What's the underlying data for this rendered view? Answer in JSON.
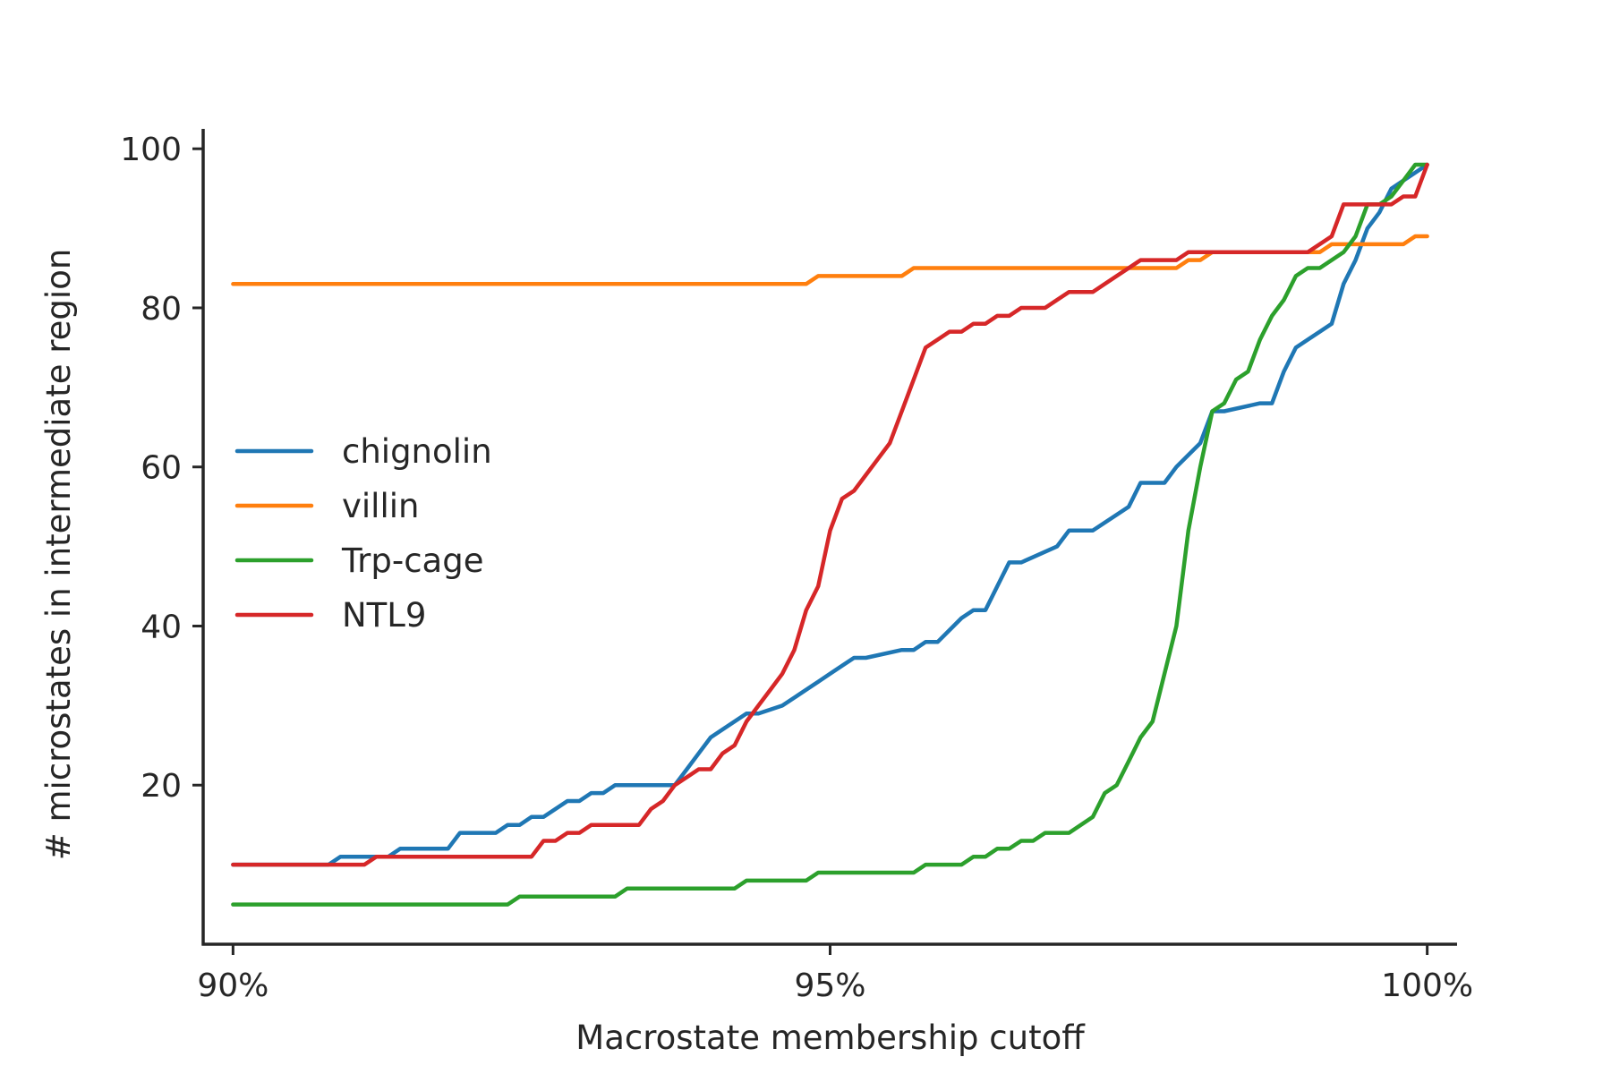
{
  "chart_data": {
    "type": "line",
    "title": "",
    "xlabel": "Macrostate membership cutoff",
    "ylabel": "# microstates in intermediate region",
    "xlim": [
      0.8975,
      1.0025
    ],
    "ylim": [
      0,
      102.5
    ],
    "x_ticks": [
      {
        "value": 0.9,
        "label": "90%"
      },
      {
        "value": 0.95,
        "label": "95%"
      },
      {
        "value": 1.0,
        "label": "100%"
      }
    ],
    "y_ticks": [
      {
        "value": 20,
        "label": "20"
      },
      {
        "value": 40,
        "label": "40"
      },
      {
        "value": 60,
        "label": "60"
      },
      {
        "value": 80,
        "label": "80"
      },
      {
        "value": 100,
        "label": "100"
      }
    ],
    "grid": false,
    "legend_position": "center-left",
    "series": [
      {
        "name": "chignolin",
        "color": "#1f77b4",
        "x": [
          0.9,
          0.908,
          0.909,
          0.913,
          0.914,
          0.918,
          0.919,
          0.922,
          0.923,
          0.924,
          0.925,
          0.926,
          0.928,
          0.929,
          0.93,
          0.931,
          0.932,
          0.933,
          0.934,
          0.937,
          0.938,
          0.939,
          0.94,
          0.941,
          0.943,
          0.944,
          0.946,
          0.947,
          0.948,
          0.949,
          0.95,
          0.951,
          0.952,
          0.953,
          0.956,
          0.957,
          0.958,
          0.959,
          0.961,
          0.962,
          0.963,
          0.964,
          0.965,
          0.966,
          0.969,
          0.97,
          0.971,
          0.972,
          0.974,
          0.975,
          0.976,
          0.978,
          0.979,
          0.981,
          0.982,
          0.983,
          0.986,
          0.987,
          0.988,
          0.989,
          0.99,
          0.991,
          0.992,
          0.993,
          0.994,
          0.995,
          0.996,
          0.997,
          0.998,
          0.999,
          1.0
        ],
        "y": [
          10,
          10,
          11,
          11,
          12,
          12,
          14,
          14,
          15,
          15,
          16,
          16,
          18,
          18,
          19,
          19,
          20,
          20,
          20,
          20,
          22,
          24,
          26,
          27,
          29,
          29,
          30,
          31,
          32,
          33,
          34,
          35,
          36,
          36,
          37,
          37,
          38,
          38,
          41,
          42,
          42,
          45,
          48,
          48,
          50,
          52,
          52,
          52,
          54,
          55,
          58,
          58,
          60,
          63,
          67,
          67,
          68,
          68,
          72,
          75,
          76,
          77,
          78,
          83,
          86,
          90,
          92,
          95,
          96,
          97,
          98
        ]
      },
      {
        "name": "villin",
        "color": "#ff7f0e",
        "x": [
          0.9,
          0.948,
          0.949,
          0.956,
          0.957,
          0.979,
          0.98,
          0.981,
          0.982,
          0.983,
          0.991,
          0.992,
          0.998,
          0.999,
          1.0
        ],
        "y": [
          83,
          83,
          84,
          84,
          85,
          85,
          86,
          86,
          87,
          87,
          87,
          88,
          88,
          89,
          89
        ]
      },
      {
        "name": "Trp-cage",
        "color": "#2ca02c",
        "x": [
          0.9,
          0.923,
          0.924,
          0.932,
          0.933,
          0.942,
          0.943,
          0.948,
          0.949,
          0.957,
          0.958,
          0.961,
          0.962,
          0.963,
          0.964,
          0.965,
          0.966,
          0.967,
          0.968,
          0.969,
          0.97,
          0.972,
          0.973,
          0.974,
          0.975,
          0.976,
          0.977,
          0.978,
          0.979,
          0.98,
          0.981,
          0.982,
          0.983,
          0.984,
          0.985,
          0.986,
          0.987,
          0.988,
          0.989,
          0.99,
          0.991,
          0.992,
          0.993,
          0.994,
          0.995,
          0.996,
          0.997,
          0.998,
          0.999,
          1.0
        ],
        "y": [
          5,
          5,
          6,
          6,
          7,
          7,
          8,
          8,
          9,
          9,
          10,
          10,
          11,
          11,
          12,
          12,
          13,
          13,
          14,
          14,
          14,
          16,
          19,
          20,
          23,
          26,
          28,
          34,
          40,
          52,
          60,
          67,
          68,
          71,
          72,
          76,
          79,
          81,
          84,
          85,
          85,
          86,
          87,
          89,
          93,
          93,
          94,
          96,
          98,
          98
        ]
      },
      {
        "name": "NTL9",
        "color": "#d62728",
        "x": [
          0.9,
          0.908,
          0.911,
          0.912,
          0.913,
          0.925,
          0.926,
          0.927,
          0.928,
          0.929,
          0.93,
          0.931,
          0.932,
          0.934,
          0.935,
          0.936,
          0.937,
          0.938,
          0.939,
          0.94,
          0.941,
          0.942,
          0.943,
          0.944,
          0.945,
          0.946,
          0.947,
          0.948,
          0.949,
          0.95,
          0.951,
          0.952,
          0.953,
          0.954,
          0.955,
          0.956,
          0.957,
          0.958,
          0.959,
          0.96,
          0.961,
          0.962,
          0.963,
          0.964,
          0.965,
          0.966,
          0.967,
          0.968,
          0.969,
          0.97,
          0.971,
          0.972,
          0.973,
          0.974,
          0.975,
          0.976,
          0.977,
          0.978,
          0.979,
          0.98,
          0.99,
          0.992,
          0.993,
          0.994,
          0.996,
          0.997,
          0.998,
          0.999,
          1.0
        ],
        "y": [
          10,
          10,
          10,
          11,
          11,
          11,
          13,
          13,
          14,
          14,
          15,
          15,
          15,
          15,
          17,
          18,
          20,
          21,
          22,
          22,
          24,
          25,
          28,
          30,
          32,
          34,
          37,
          42,
          45,
          52,
          56,
          57,
          59,
          61,
          63,
          67,
          71,
          75,
          76,
          77,
          77,
          78,
          78,
          79,
          79,
          80,
          80,
          80,
          81,
          82,
          82,
          82,
          83,
          84,
          85,
          86,
          86,
          86,
          86,
          87,
          87,
          89,
          93,
          93,
          93,
          93,
          94,
          94,
          98
        ]
      }
    ]
  }
}
